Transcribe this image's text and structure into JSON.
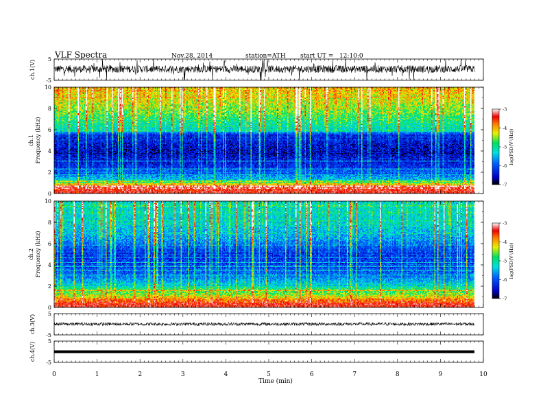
{
  "header": {
    "title": "VLF Spectra",
    "date": "Nov.28, 2014",
    "station": "station=ATH",
    "start_ut": "start UT =   12:10:0"
  },
  "chart_data": {
    "type": "spectrogram",
    "xlabel": "Time (min)",
    "xlim": [
      0,
      10
    ],
    "xticks": [
      "0",
      "1",
      "2",
      "3",
      "4",
      "5",
      "6",
      "7",
      "8",
      "9",
      "10"
    ],
    "data_end_min": 9.8,
    "panels": [
      {
        "id": "ch1v",
        "kind": "waveform",
        "ylabel": "ch.1(V)",
        "ylim": [
          -5,
          5
        ],
        "yticks": [
          "5",
          "-5"
        ],
        "baseline": 0.3,
        "noise": 0.35,
        "spike_rate": 0.05
      },
      {
        "id": "ch1s",
        "kind": "spectrogram",
        "ylabel": "ch.1 Frequency (kHz)",
        "ylabel_top": "ch.1",
        "ylabel_bottom": "Frequency (kHz)",
        "ylim": [
          0,
          10
        ],
        "yticks": [
          "0",
          "2",
          "4",
          "6",
          "8",
          "10"
        ],
        "colorbar": {
          "label": "log(PSD(V²/Hz))",
          "range": [
            -7,
            -3
          ],
          "ticks": [
            "-3",
            "-4",
            "-5",
            "-6",
            "-7"
          ]
        },
        "profile": [
          [
            0,
            -3.5
          ],
          [
            0.5,
            -3.3
          ],
          [
            0.8,
            -4.0
          ],
          [
            1.2,
            -5.4
          ],
          [
            2.5,
            -6.3
          ],
          [
            4,
            -6.6
          ],
          [
            5.5,
            -6.3
          ],
          [
            6,
            -5.2
          ],
          [
            7,
            -4.9
          ],
          [
            8.5,
            -4.4
          ],
          [
            10,
            -4.1
          ]
        ],
        "bursts": 0.12
      },
      {
        "id": "ch2s",
        "kind": "spectrogram",
        "ylabel": "ch.2 Frequency (kHz)",
        "ylabel_top": "ch.2",
        "ylabel_bottom": "Frequency (kHz)",
        "ylim": [
          0,
          10
        ],
        "yticks": [
          "0",
          "2",
          "4",
          "6",
          "8",
          "10"
        ],
        "colorbar": {
          "label": "log(PSD(V²/Hz))",
          "range": [
            -7,
            -3
          ],
          "ticks": [
            "-3",
            "-4",
            "-5",
            "-6",
            "-7"
          ]
        },
        "profile": [
          [
            0,
            -3.6
          ],
          [
            0.6,
            -3.7
          ],
          [
            1,
            -4.3
          ],
          [
            1.6,
            -4.8
          ],
          [
            2.5,
            -5.6
          ],
          [
            3.2,
            -6.0
          ],
          [
            4,
            -6.1
          ],
          [
            5,
            -6.3
          ],
          [
            5.8,
            -6.0
          ],
          [
            6.5,
            -5.6
          ],
          [
            8,
            -5.3
          ],
          [
            10,
            -5.2
          ]
        ],
        "bursts": 0.14
      },
      {
        "id": "ch3v",
        "kind": "waveform",
        "ylabel": "ch.3(V)",
        "ylim": [
          -5,
          5
        ],
        "yticks": [
          "5",
          "-5"
        ],
        "baseline": 0.1,
        "noise": 0.15,
        "spike_rate": 0.0
      },
      {
        "id": "ch4v",
        "kind": "waveform",
        "ylabel": "ch.4(V)",
        "ylim": [
          -5,
          5
        ],
        "yticks": [
          "5",
          "-5"
        ],
        "baseline": 0.0,
        "noise": 0.0,
        "spike_rate": 0.0,
        "thick": true
      }
    ]
  }
}
